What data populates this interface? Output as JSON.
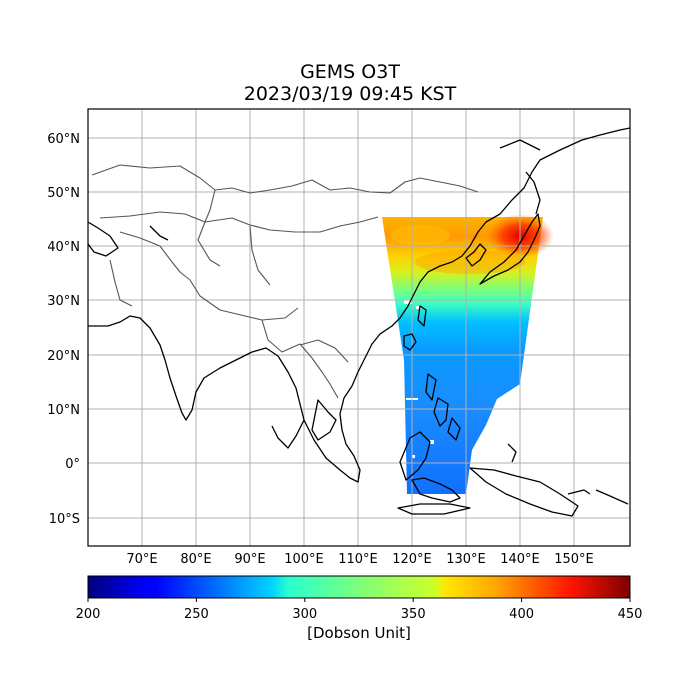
{
  "title": {
    "line1": "GEMS O3T",
    "line2": "2023/03/19 09:45 KST"
  },
  "map": {
    "lat_ticks": [
      "60°N",
      "50°N",
      "40°N",
      "30°N",
      "20°N",
      "10°N",
      "0°",
      "10°S"
    ],
    "lon_ticks": [
      "70°E",
      "80°E",
      "90°E",
      "100°E",
      "110°E",
      "120°E",
      "130°E",
      "140°E",
      "150°E"
    ],
    "gridlines": true,
    "lon_range": [
      60,
      160
    ],
    "lat_range": [
      -15,
      65
    ]
  },
  "colorbar": {
    "colormap": "jet",
    "min": 200,
    "max": 450,
    "ticks": [
      "200",
      "250",
      "300",
      "350",
      "400",
      "450"
    ],
    "label": "[Dobson Unit]"
  }
}
